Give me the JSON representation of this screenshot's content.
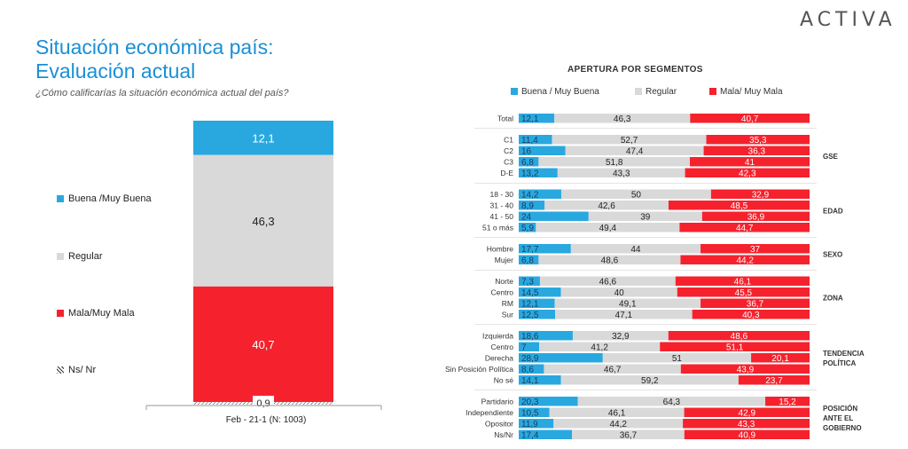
{
  "brand": "ACTIVA",
  "title_line1": "Situación económica país:",
  "title_line2": "Evaluación actual",
  "subtitle": "¿Cómo calificarías la situación económica actual del país?",
  "colors": {
    "good": "#29a8e0",
    "regular": "#d9d9d9",
    "bad": "#f5222d",
    "title": "#1a8fd6"
  },
  "chart_data": [
    {
      "type": "bar",
      "stacked": true,
      "categories": [
        "Feb - 21-1 (N: 1003)"
      ],
      "series": [
        {
          "name": "Buena /Muy Buena",
          "values": [
            12.1
          ],
          "labels": [
            "12,1"
          ]
        },
        {
          "name": "Regular",
          "values": [
            46.3
          ],
          "labels": [
            "46,3"
          ]
        },
        {
          "name": "Mala/Muy Mala",
          "values": [
            40.7
          ],
          "labels": [
            "40,7"
          ]
        },
        {
          "name": "Ns/ Nr",
          "values": [
            0.9
          ],
          "labels": [
            "0,9"
          ]
        }
      ],
      "xlabel": "Feb - 21-1 (N: 1003)"
    },
    {
      "type": "bar",
      "orientation": "horizontal",
      "stacked": true,
      "title": "APERTURA POR SEGMENTOS",
      "legend": [
        "Buena / Muy Buena",
        "Regular",
        "Mala/ Muy Mala"
      ],
      "groups": [
        {
          "name": "",
          "rows": [
            {
              "label": "Total",
              "good": 12.1,
              "good_label": "12,1",
              "regular": 46.3,
              "regular_label": "46,3",
              "bad": 40.7,
              "bad_label": "40,7"
            }
          ]
        },
        {
          "name": "GSE",
          "rows": [
            {
              "label": "C1",
              "good": 11.4,
              "good_label": "11,4",
              "regular": 52.7,
              "regular_label": "52,7",
              "bad": 35.3,
              "bad_label": "35,3"
            },
            {
              "label": "C2",
              "good": 16,
              "good_label": "16",
              "regular": 47.4,
              "regular_label": "47,4",
              "bad": 36.3,
              "bad_label": "36,3"
            },
            {
              "label": "C3",
              "good": 6.8,
              "good_label": "6,8",
              "regular": 51.8,
              "regular_label": "51,8",
              "bad": 41,
              "bad_label": "41"
            },
            {
              "label": "D-E",
              "good": 13.2,
              "good_label": "13,2",
              "regular": 43.3,
              "regular_label": "43,3",
              "bad": 42.3,
              "bad_label": "42,3"
            }
          ]
        },
        {
          "name": "EDAD",
          "rows": [
            {
              "label": "18 - 30",
              "good": 14.2,
              "good_label": "14,2",
              "regular": 50,
              "regular_label": "50",
              "bad": 32.9,
              "bad_label": "32,9"
            },
            {
              "label": "31 - 40",
              "good": 8.9,
              "good_label": "8,9",
              "regular": 42.6,
              "regular_label": "42,6",
              "bad": 48.5,
              "bad_label": "48,5"
            },
            {
              "label": "41 - 50",
              "good": 24,
              "good_label": "24",
              "regular": 39,
              "regular_label": "39",
              "bad": 36.9,
              "bad_label": "36,9"
            },
            {
              "label": "51 o más",
              "good": 5.9,
              "good_label": "5,9",
              "regular": 49.4,
              "regular_label": "49,4",
              "bad": 44.7,
              "bad_label": "44,7"
            }
          ]
        },
        {
          "name": "SEXO",
          "rows": [
            {
              "label": "Hombre",
              "good": 17.7,
              "good_label": "17,7",
              "regular": 44,
              "regular_label": "44",
              "bad": 37,
              "bad_label": "37"
            },
            {
              "label": "Mujer",
              "good": 6.8,
              "good_label": "6,8",
              "regular": 48.6,
              "regular_label": "48,6",
              "bad": 44.2,
              "bad_label": "44,2"
            }
          ]
        },
        {
          "name": "ZONA",
          "rows": [
            {
              "label": "Norte",
              "good": 7.3,
              "good_label": "7,3",
              "regular": 46.6,
              "regular_label": "46,6",
              "bad": 46.1,
              "bad_label": "46,1"
            },
            {
              "label": "Centro",
              "good": 14.5,
              "good_label": "14,5",
              "regular": 40,
              "regular_label": "40",
              "bad": 45.5,
              "bad_label": "45,5"
            },
            {
              "label": "RM",
              "good": 12.1,
              "good_label": "12,1",
              "regular": 49.1,
              "regular_label": "49,1",
              "bad": 36.7,
              "bad_label": "36,7"
            },
            {
              "label": "Sur",
              "good": 12.5,
              "good_label": "12,5",
              "regular": 47.1,
              "regular_label": "47,1",
              "bad": 40.3,
              "bad_label": "40,3"
            }
          ]
        },
        {
          "name": "TENDENCIA POLÍTICA",
          "rows": [
            {
              "label": "Izquierda",
              "good": 18.6,
              "good_label": "18,6",
              "regular": 32.9,
              "regular_label": "32,9",
              "bad": 48.6,
              "bad_label": "48,6"
            },
            {
              "label": "Centro",
              "good": 7,
              "good_label": "7",
              "regular": 41.2,
              "regular_label": "41,2",
              "bad": 51.1,
              "bad_label": "51,1"
            },
            {
              "label": "Derecha",
              "good": 28.9,
              "good_label": "28,9",
              "regular": 51,
              "regular_label": "51",
              "bad": 20.1,
              "bad_label": "20,1"
            },
            {
              "label": "Sin Posición Política",
              "good": 8.6,
              "good_label": "8,6",
              "regular": 46.7,
              "regular_label": "46,7",
              "bad": 43.9,
              "bad_label": "43,9"
            },
            {
              "label": "No sé",
              "good": 14.1,
              "good_label": "14,1",
              "regular": 59.2,
              "regular_label": "59,2",
              "bad": 23.7,
              "bad_label": "23,7"
            }
          ]
        },
        {
          "name": "POSICIÓN ANTE EL GOBIERNO",
          "rows": [
            {
              "label": "Partidario",
              "good": 20.3,
              "good_label": "20,3",
              "regular": 64.3,
              "regular_label": "64,3",
              "bad": 15.2,
              "bad_label": "15,2"
            },
            {
              "label": "Independiente",
              "good": 10.5,
              "good_label": "10,5",
              "regular": 46.1,
              "regular_label": "46,1",
              "bad": 42.9,
              "bad_label": "42,9"
            },
            {
              "label": "Opositor",
              "good": 11.9,
              "good_label": "11,9",
              "regular": 44.2,
              "regular_label": "44,2",
              "bad": 43.3,
              "bad_label": "43,3"
            },
            {
              "label": "Ns/Nr",
              "good": 17.4,
              "good_label": "17,4",
              "regular": 36.7,
              "regular_label": "36,7",
              "bad": 40.9,
              "bad_label": "40,9"
            }
          ]
        }
      ]
    }
  ]
}
